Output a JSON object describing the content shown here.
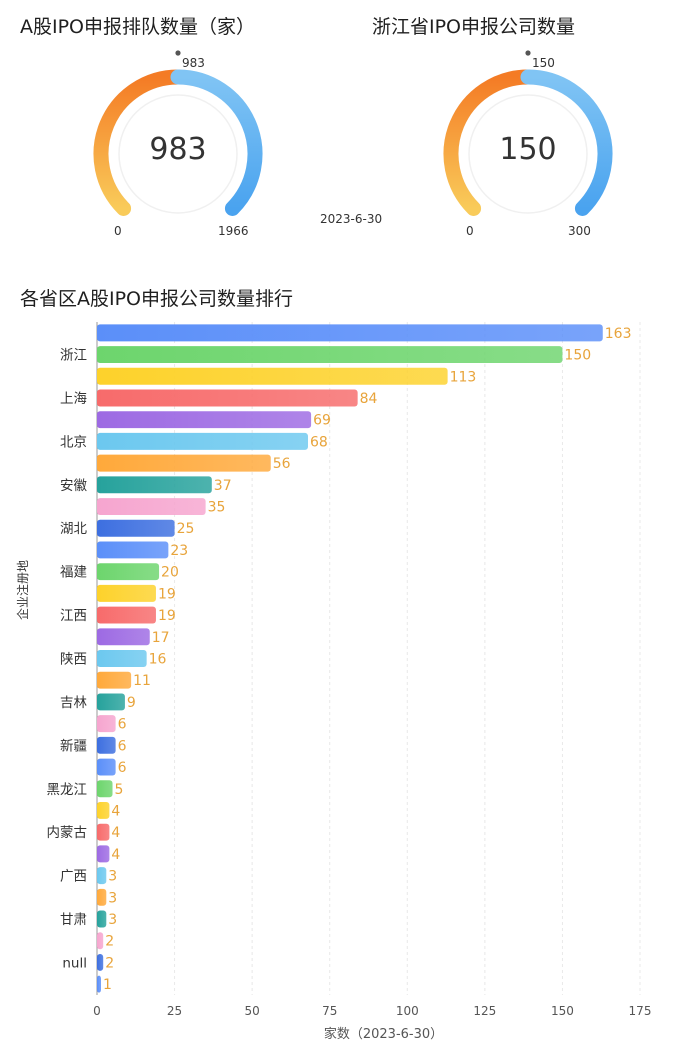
{
  "gauge_1": {
    "title": "A股IPO申报排队数量（家）",
    "value": 983,
    "value_label": "983",
    "marker_label": "983",
    "min": 0,
    "max": 1966,
    "min_label": "0",
    "max_label": "1966"
  },
  "gauge_2": {
    "title": "浙江省IPO申报公司数量",
    "value": 150,
    "value_label": "150",
    "marker_label": "150",
    "min": 0,
    "max": 300,
    "min_label": "0",
    "max_label": "300"
  },
  "gauge_date": "2023-6-30",
  "chart_data": {
    "type": "bar",
    "orientation": "horizontal",
    "title": "各省区A股IPO申报公司数量排行",
    "xlabel": "家数（2023-6-30）",
    "ylabel": "企业注册地",
    "xlim": [
      0,
      175
    ],
    "xticks": [
      0,
      25,
      50,
      75,
      100,
      125,
      150,
      175
    ],
    "grid": true,
    "categories": [
      "",
      "浙江",
      "",
      "上海",
      "",
      "北京",
      "",
      "安徽",
      "",
      "湖北",
      "",
      "福建",
      "",
      "江西",
      "",
      "陕西",
      "",
      "吉林",
      "",
      "新疆",
      "",
      "黑龙江",
      "",
      "内蒙古",
      "",
      "广西",
      "",
      "甘肃",
      "",
      "null",
      ""
    ],
    "values": [
      163,
      150,
      113,
      84,
      69,
      68,
      56,
      37,
      35,
      25,
      23,
      20,
      19,
      19,
      17,
      16,
      11,
      9,
      6,
      6,
      6,
      5,
      4,
      4,
      4,
      3,
      3,
      3,
      2,
      2,
      1
    ],
    "colors": [
      "#5b8ff9",
      "#6dd56d",
      "#fdd22b",
      "#f76b6b",
      "#9d6ae3",
      "#6cc8ef",
      "#ffa93b",
      "#26a29c",
      "#f6a5cf",
      "#3d6fe0"
    ],
    "value_label_color": "#e8a43b"
  }
}
